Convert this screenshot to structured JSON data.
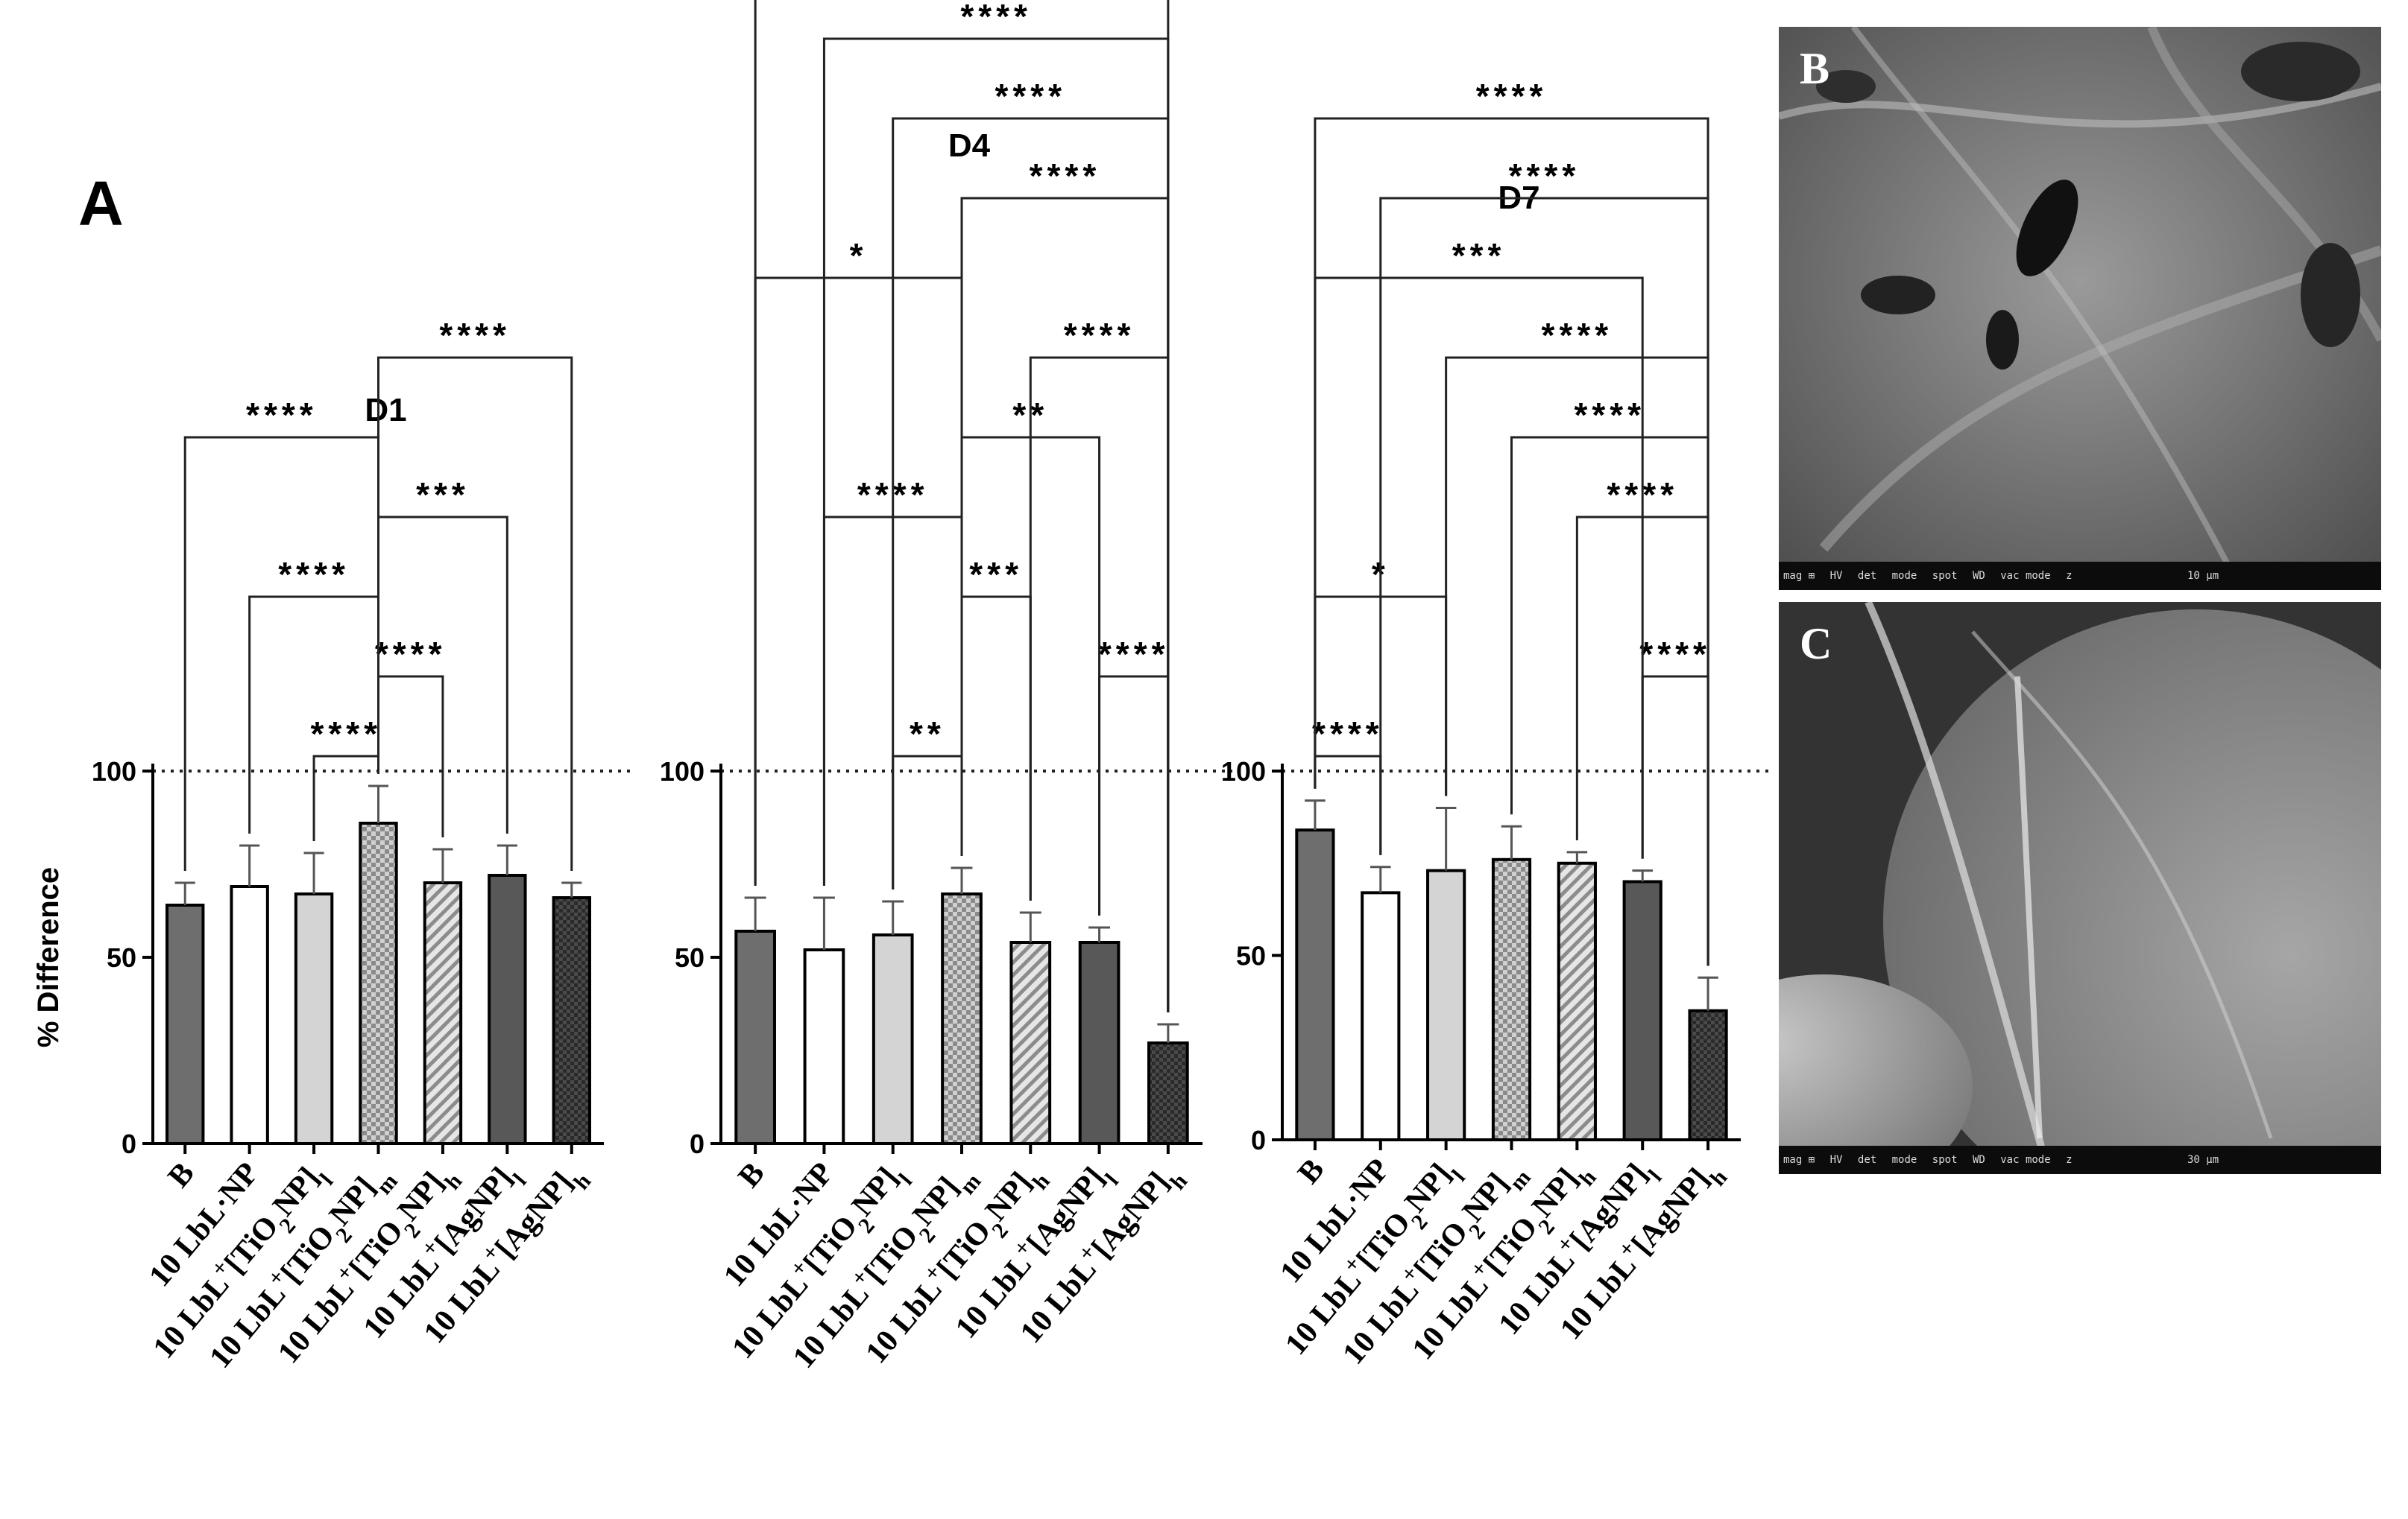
{
  "figure": {
    "panel_label_a": "A",
    "panel_label_b": "B",
    "panel_label_c": "C",
    "y_label": "% Difference",
    "reference_line": 100
  },
  "sem": {
    "b_metadata": [
      "mag ⊞",
      "HV",
      "det",
      "mode",
      "spot",
      "WD",
      "vac mode",
      "z",
      "10 µm"
    ],
    "c_metadata": [
      "mag ⊞",
      "HV",
      "det",
      "mode",
      "spot",
      "WD",
      "vac mode",
      "z",
      "30 µm"
    ]
  },
  "colors": {
    "bar_dark": "#6e6e6e",
    "bar_white": "#ffffff",
    "bar_light": "#d4d4d4",
    "bar_darker": "#585858",
    "pattern_fill": "#c9c9c9"
  },
  "chart_data": [
    {
      "type": "bar",
      "title": "D1",
      "ylabel": "% Difference",
      "ylim": [
        0,
        100
      ],
      "yticks": [
        0,
        50,
        100
      ],
      "categories": [
        "B",
        "10 LbL-NP",
        "10 LbL+[TiO2NP]l",
        "10 LbL+[TiO2NP]m",
        "10 LbL+[TiO2NP]h",
        "10 LbL+[AgNP]l",
        "10 LbL+[AgNP]h"
      ],
      "values": [
        64,
        69,
        67,
        86,
        70,
        72,
        66
      ],
      "errors": [
        6,
        11,
        11,
        10,
        9,
        8,
        4
      ],
      "comparisons": [
        {
          "from": 2,
          "to": 3,
          "label": "****"
        },
        {
          "from": 3,
          "to": 4,
          "label": "****"
        },
        {
          "from": 1,
          "to": 3,
          "label": "****"
        },
        {
          "from": 3,
          "to": 5,
          "label": "***"
        },
        {
          "from": 0,
          "to": 3,
          "label": "****"
        },
        {
          "from": 3,
          "to": 6,
          "label": "****"
        }
      ]
    },
    {
      "type": "bar",
      "title": "D4",
      "ylabel": "",
      "ylim": [
        0,
        100
      ],
      "yticks": [
        0,
        50,
        100
      ],
      "categories": [
        "B",
        "10 LbL-NP",
        "10 LbL+[TiO2NP]l",
        "10 LbL+[TiO2NP]m",
        "10 LbL+[TiO2NP]h",
        "10 LbL+[AgNP]l",
        "10 LbL+[AgNP]h"
      ],
      "values": [
        57,
        52,
        56,
        67,
        54,
        54,
        27
      ],
      "errors": [
        9,
        14,
        9,
        7,
        8,
        4,
        5
      ],
      "comparisons": [
        {
          "from": 2,
          "to": 3,
          "label": "**"
        },
        {
          "from": 5,
          "to": 6,
          "label": "****"
        },
        {
          "from": 0,
          "to": 3,
          "label": "*"
        },
        {
          "from": 3,
          "to": 4,
          "label": "***"
        },
        {
          "from": 1,
          "to": 3,
          "label": "****"
        },
        {
          "from": 3,
          "to": 5,
          "label": "**"
        },
        {
          "from": 4,
          "to": 6,
          "label": "****"
        },
        {
          "from": 3,
          "to": 6,
          "label": "****"
        },
        {
          "from": 2,
          "to": 6,
          "label": "****"
        },
        {
          "from": 1,
          "to": 6,
          "label": "****"
        },
        {
          "from": 0,
          "to": 6,
          "label": "****"
        }
      ]
    },
    {
      "type": "bar",
      "title": "D7",
      "ylabel": "",
      "ylim": [
        0,
        100
      ],
      "yticks": [
        0,
        50,
        100
      ],
      "categories": [
        "B",
        "10 LbL-NP",
        "10 LbL+[TiO2NP]l",
        "10 LbL+[TiO2NP]m",
        "10 LbL+[TiO2NP]h",
        "10 LbL+[AgNP]l",
        "10 LbL+[AgNP]h"
      ],
      "values": [
        84,
        67,
        73,
        76,
        75,
        70,
        35
      ],
      "errors": [
        8,
        7,
        17,
        9,
        3,
        3,
        9
      ],
      "comparisons": [
        {
          "from": 0,
          "to": 1,
          "label": "****"
        },
        {
          "from": 5,
          "to": 6,
          "label": "****"
        },
        {
          "from": 0,
          "to": 2,
          "label": "*"
        },
        {
          "from": 4,
          "to": 6,
          "label": "****"
        },
        {
          "from": 3,
          "to": 6,
          "label": "****"
        },
        {
          "from": 2,
          "to": 6,
          "label": "****"
        },
        {
          "from": 0,
          "to": 5,
          "label": "***"
        },
        {
          "from": 1,
          "to": 6,
          "label": "****"
        },
        {
          "from": 0,
          "to": 6,
          "label": "****"
        }
      ]
    }
  ]
}
